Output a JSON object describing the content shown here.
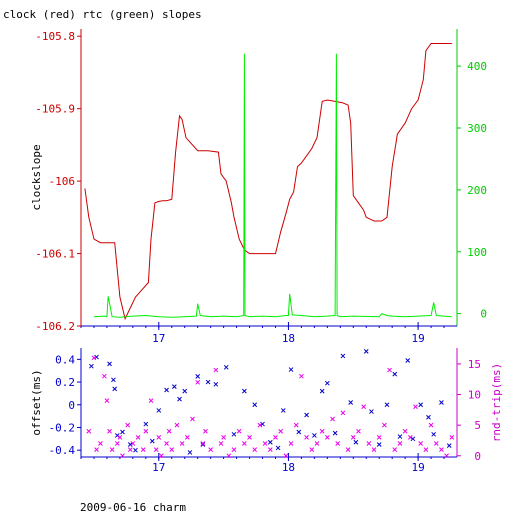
{
  "title": "clock (red) rtc (green) slopes",
  "footer": "2009-06-16 charm",
  "colors": {
    "clock": "#cc0000",
    "rtc": "#00ee00",
    "offset": "#0000cc",
    "rtt": "#ee00ee",
    "left_axis": "#cc0000",
    "right_axis": "#00cc00",
    "bottom_axis": "#0000cc",
    "bottom_right_axis": "#cc00cc"
  },
  "chart_data": [
    {
      "type": "line",
      "ylabel": "clockslope",
      "xlim": [
        16.4,
        19.3
      ],
      "ylim": [
        -106.2,
        -105.79
      ],
      "y2lim": [
        -20,
        460
      ],
      "xticks": [
        17,
        18,
        19
      ],
      "xtick_labels": [
        "17",
        "18",
        "19"
      ],
      "yticks": [
        -105.8,
        -105.9,
        -106.0,
        -106.1,
        -106.2
      ],
      "ytick_labels": [
        "-105.8",
        "-105.9",
        "-106",
        "-106.1",
        "-106.2"
      ],
      "y2ticks": [
        0,
        100,
        200,
        300,
        400
      ],
      "y2tick_labels": [
        "0",
        "100",
        "200",
        "300",
        "400"
      ],
      "series": [
        {
          "key": "clock",
          "axis": "left",
          "x": [
            16.43,
            16.46,
            16.5,
            16.55,
            16.6,
            16.66,
            16.7,
            16.74,
            16.78,
            16.82,
            16.87,
            16.92,
            16.94,
            16.97,
            17.0,
            17.03,
            17.06,
            17.1,
            17.13,
            17.16,
            17.18,
            17.21,
            17.3,
            17.38,
            17.46,
            17.48,
            17.52,
            17.56,
            17.58,
            17.62,
            17.66,
            17.7,
            17.76,
            17.82,
            17.9,
            17.94,
            17.98,
            18.01,
            18.04,
            18.07,
            18.1,
            18.14,
            18.18,
            18.22,
            18.26,
            18.3,
            18.36,
            18.42,
            18.46,
            18.48,
            18.5,
            18.54,
            18.58,
            18.6,
            18.66,
            18.72,
            18.76,
            18.8,
            18.84,
            18.86,
            18.9,
            18.95,
            19.0,
            19.04,
            19.06,
            19.1,
            19.14,
            19.2,
            19.26
          ],
          "y": [
            -106.01,
            -106.05,
            -106.08,
            -106.085,
            -106.085,
            -106.085,
            -106.16,
            -106.19,
            -106.175,
            -106.16,
            -106.15,
            -106.14,
            -106.08,
            -106.03,
            -106.028,
            -106.027,
            -106.027,
            -106.025,
            -105.96,
            -105.91,
            -105.915,
            -105.94,
            -105.958,
            -105.958,
            -105.96,
            -105.99,
            -106.0,
            -106.03,
            -106.05,
            -106.08,
            -106.095,
            -106.1,
            -106.1,
            -106.1,
            -106.1,
            -106.07,
            -106.045,
            -106.025,
            -106.015,
            -105.98,
            -105.975,
            -105.965,
            -105.955,
            -105.94,
            -105.89,
            -105.888,
            -105.89,
            -105.892,
            -105.895,
            -105.92,
            -106.02,
            -106.03,
            -106.04,
            -106.05,
            -106.055,
            -106.055,
            -106.05,
            -105.98,
            -105.935,
            -105.93,
            -105.92,
            -105.9,
            -105.888,
            -105.86,
            -105.82,
            -105.81,
            -105.81,
            -105.81,
            -105.81
          ]
        },
        {
          "key": "rtc",
          "axis": "right",
          "x": [
            16.5,
            16.58,
            16.6,
            16.61,
            16.64,
            16.7,
            16.8,
            16.9,
            17.0,
            17.1,
            17.2,
            17.29,
            17.3,
            17.32,
            17.4,
            17.5,
            17.6,
            17.655,
            17.66,
            17.665,
            17.7,
            17.8,
            17.9,
            17.98,
            18.0,
            18.01,
            18.03,
            18.1,
            18.2,
            18.3,
            18.36,
            18.37,
            18.375,
            18.4,
            18.5,
            18.7,
            18.72,
            18.76,
            18.8,
            18.9,
            19.0,
            19.1,
            19.12,
            19.14,
            19.2,
            19.26
          ],
          "y": [
            -5,
            -4,
            -5,
            28,
            -5,
            -6,
            -4,
            -3,
            -5,
            -6,
            -5,
            -4,
            16,
            -3,
            -5,
            -4,
            -5,
            -3,
            420,
            -3,
            -5,
            -4,
            -5,
            -3,
            -3,
            32,
            -2,
            -3,
            -5,
            -4,
            -3,
            420,
            -3,
            -5,
            -4,
            -5,
            0,
            -3,
            -4,
            -5,
            -4,
            -3,
            18,
            -3,
            -4,
            -5
          ]
        }
      ]
    },
    {
      "type": "scatter",
      "ylabel": "offset(ms)",
      "y2label": "rnd-trip(ms)",
      "xlim": [
        16.4,
        19.3
      ],
      "ylim": [
        -0.46,
        0.5
      ],
      "y2lim": [
        -0.2,
        17.6
      ],
      "xticks": [
        17,
        18,
        19
      ],
      "xtick_labels": [
        "17",
        "18",
        "19"
      ],
      "yticks": [
        0.4,
        0.2,
        0,
        -0.2,
        -0.4
      ],
      "ytick_labels": [
        "0.4",
        "0.2",
        "0",
        "-0.2",
        "-0.4"
      ],
      "y2ticks": [
        0,
        5,
        10,
        15
      ],
      "y2tick_labels": [
        "0",
        "5",
        "10",
        "15"
      ],
      "series": [
        {
          "key": "offset",
          "axis": "left",
          "x": [
            16.48,
            16.52,
            16.62,
            16.65,
            16.66,
            16.68,
            16.72,
            16.78,
            16.82,
            16.9,
            16.95,
            17.0,
            17.06,
            17.12,
            17.16,
            17.2,
            17.24,
            17.3,
            17.34,
            17.38,
            17.44,
            17.52,
            17.58,
            17.66,
            17.74,
            17.8,
            17.86,
            17.92,
            17.96,
            18.02,
            18.08,
            18.14,
            18.2,
            18.26,
            18.3,
            18.36,
            18.42,
            18.48,
            18.52,
            18.6,
            18.64,
            18.7,
            18.76,
            18.82,
            18.86,
            18.92,
            18.96,
            19.02,
            19.08,
            19.12,
            19.18,
            19.24
          ],
          "y": [
            0.34,
            0.42,
            0.36,
            0.22,
            0.14,
            -0.27,
            -0.24,
            -0.35,
            -0.4,
            -0.17,
            -0.32,
            -0.05,
            0.13,
            0.16,
            0.05,
            0.12,
            -0.42,
            0.25,
            -0.35,
            0.2,
            0.18,
            0.33,
            -0.26,
            0.12,
            0.0,
            -0.17,
            -0.33,
            -0.38,
            -0.05,
            0.31,
            -0.24,
            -0.09,
            -0.27,
            0.12,
            0.19,
            -0.25,
            0.43,
            0.02,
            -0.33,
            0.47,
            -0.06,
            -0.35,
            0.0,
            0.27,
            -0.28,
            0.39,
            -0.3,
            0.0,
            -0.11,
            -0.26,
            0.02,
            -0.36
          ]
        },
        {
          "key": "rtt",
          "axis": "right",
          "x": [
            16.46,
            16.5,
            16.52,
            16.55,
            16.58,
            16.6,
            16.62,
            16.64,
            16.68,
            16.7,
            16.72,
            16.76,
            16.78,
            16.8,
            16.84,
            16.88,
            16.9,
            16.94,
            16.98,
            17.0,
            17.02,
            17.06,
            17.08,
            17.1,
            17.14,
            17.18,
            17.22,
            17.26,
            17.3,
            17.34,
            17.36,
            17.4,
            17.44,
            17.48,
            17.5,
            17.54,
            17.58,
            17.62,
            17.66,
            17.7,
            17.74,
            17.78,
            17.82,
            17.86,
            17.9,
            17.94,
            17.98,
            18.02,
            18.06,
            18.1,
            18.14,
            18.18,
            18.22,
            18.26,
            18.3,
            18.34,
            18.38,
            18.42,
            18.46,
            18.5,
            18.54,
            18.58,
            18.62,
            18.66,
            18.7,
            18.74,
            18.78,
            18.82,
            18.86,
            18.9,
            18.94,
            18.98,
            19.02,
            19.06,
            19.1,
            19.14,
            19.18,
            19.22,
            19.26
          ],
          "y": [
            4,
            16,
            1,
            2,
            13,
            9,
            4,
            1,
            2,
            3,
            0,
            5,
            1,
            2,
            3,
            1,
            4,
            9,
            1,
            3,
            0,
            2,
            4,
            1,
            5,
            2,
            3,
            6,
            12,
            2,
            4,
            1,
            14,
            2,
            3,
            0,
            1,
            4,
            2,
            3,
            1,
            5,
            2,
            1,
            3,
            4,
            0,
            2,
            5,
            13,
            3,
            1,
            2,
            4,
            3,
            6,
            2,
            7,
            1,
            3,
            4,
            8,
            2,
            1,
            3,
            5,
            14,
            1,
            2,
            4,
            3,
            8,
            2,
            1,
            5,
            2,
            1,
            0,
            3
          ]
        }
      ]
    }
  ]
}
